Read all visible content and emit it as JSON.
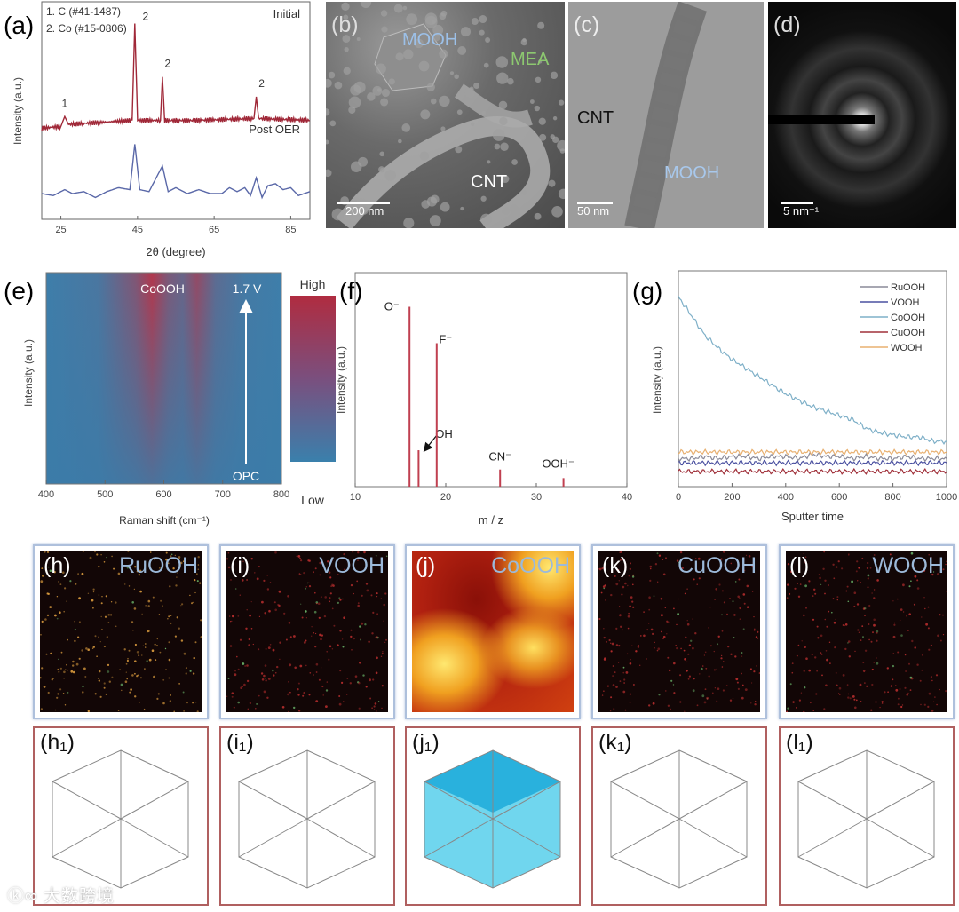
{
  "panels": {
    "a": "(a)",
    "b": "(b)",
    "c": "(c)",
    "d": "(d)",
    "e": "(e)",
    "f": "(f)",
    "g": "(g)"
  },
  "micrographs": {
    "b": {
      "mooh": "MOOH",
      "mea": "MEA",
      "cnt": "CNT",
      "scale": "200 nm"
    },
    "c": {
      "cnt": "CNT",
      "mooh": "MOOH",
      "scale": "50 nm"
    },
    "d": {
      "scale": "5 nm⁻¹"
    }
  },
  "colorbar": {
    "high": "High",
    "low": "Low"
  },
  "maps": [
    {
      "label": "(h)",
      "name": "RuOOH",
      "label3d": "(h₁)"
    },
    {
      "label": "(i)",
      "name": "VOOH",
      "label3d": "(i₁)"
    },
    {
      "label": "(j)",
      "name": "CoOOH",
      "label3d": "(j₁)"
    },
    {
      "label": "(k)",
      "name": "CuOOH",
      "label3d": "(k₁)"
    },
    {
      "label": "(l)",
      "name": "WOOH",
      "label3d": "(l₁)"
    }
  ],
  "watermark": "大数跨境",
  "chart_data": [
    {
      "id": "a",
      "type": "line",
      "xlabel": "2θ (degree)",
      "ylabel": "Intensity (a.u.)",
      "xlim": [
        20,
        90
      ],
      "ylim": [
        0,
        1.1
      ],
      "xticks": [
        25,
        45,
        65,
        85
      ],
      "legend_text": [
        "1. C (#41-1487)",
        "2. Co (#15-0806)"
      ],
      "series": [
        {
          "name": "Initial",
          "color": "#a02838",
          "points": [
            [
              20,
              0.46
            ],
            [
              25,
              0.47
            ],
            [
              26,
              0.52
            ],
            [
              27,
              0.48
            ],
            [
              35,
              0.49
            ],
            [
              43.6,
              0.5
            ],
            [
              44.3,
              0.99
            ],
            [
              45,
              0.5
            ],
            [
              51,
              0.5
            ],
            [
              51.5,
              0.72
            ],
            [
              52.1,
              0.5
            ],
            [
              60,
              0.5
            ],
            [
              75.4,
              0.51
            ],
            [
              76,
              0.62
            ],
            [
              76.6,
              0.51
            ],
            [
              90,
              0.5
            ]
          ]
        },
        {
          "name": "Post OER",
          "color": "#5a68a8",
          "points": [
            [
              20,
              0.13
            ],
            [
              23,
              0.12
            ],
            [
              26,
              0.15
            ],
            [
              28,
              0.13
            ],
            [
              31,
              0.14
            ],
            [
              34,
              0.11
            ],
            [
              37,
              0.14
            ],
            [
              40,
              0.16
            ],
            [
              43,
              0.15
            ],
            [
              44.3,
              0.38
            ],
            [
              45.6,
              0.15
            ],
            [
              48,
              0.14
            ],
            [
              51.5,
              0.27
            ],
            [
              53,
              0.14
            ],
            [
              55,
              0.16
            ],
            [
              58,
              0.13
            ],
            [
              61,
              0.15
            ],
            [
              64,
              0.13
            ],
            [
              67,
              0.13
            ],
            [
              69,
              0.16
            ],
            [
              71,
              0.14
            ],
            [
              73,
              0.16
            ],
            [
              74.5,
              0.12
            ],
            [
              76,
              0.21
            ],
            [
              77.5,
              0.11
            ],
            [
              79,
              0.17
            ],
            [
              81,
              0.18
            ],
            [
              83,
              0.15
            ],
            [
              85,
              0.16
            ],
            [
              87,
              0.12
            ],
            [
              90,
              0.14
            ]
          ]
        }
      ],
      "annotations": [
        {
          "text": "1",
          "x": 26
        },
        {
          "text": "2",
          "x": 44.3
        },
        {
          "text": "2",
          "x": 51.5
        },
        {
          "text": "2",
          "x": 76
        }
      ]
    },
    {
      "id": "e",
      "type": "heatmap",
      "xlabel": "Raman shift (cm⁻¹)",
      "ylabel": "Intensity (a.u.)",
      "xlim": [
        400,
        800
      ],
      "xticks": [
        400,
        500,
        600,
        700,
        800
      ],
      "bands": [
        575,
        655
      ],
      "annotations": {
        "peak": "CoOOH",
        "top": "1.7 V",
        "bottom": "OPC"
      }
    },
    {
      "id": "f",
      "type": "bar",
      "xlabel": "m / z",
      "ylabel": "Intensity (a.u.)",
      "xlim": [
        10,
        40
      ],
      "ylim": [
        0,
        1
      ],
      "xticks": [
        10,
        20,
        30,
        40
      ],
      "color": "#c04050",
      "peaks": [
        {
          "label": "O⁻",
          "x": 16,
          "y": 0.84
        },
        {
          "label": "OH⁻",
          "x": 17,
          "y": 0.17
        },
        {
          "label": "F⁻",
          "x": 19,
          "y": 0.67
        },
        {
          "label": "CN⁻",
          "x": 26,
          "y": 0.08
        },
        {
          "label": "OOH⁻",
          "x": 33,
          "y": 0.04
        }
      ]
    },
    {
      "id": "g",
      "type": "line",
      "xlabel": "Sputter time",
      "ylabel": "Intensity (a.u.)",
      "xlim": [
        0,
        1000
      ],
      "ylim": [
        0,
        1
      ],
      "xticks": [
        0,
        200,
        400,
        600,
        800,
        1000
      ],
      "legend": "top-right",
      "x": [
        0,
        50,
        100,
        150,
        200,
        250,
        300,
        350,
        400,
        450,
        500,
        550,
        600,
        650,
        700,
        750,
        800,
        850,
        900,
        950,
        1000
      ],
      "series": [
        {
          "name": "RuOOH",
          "color": "#8a8a98",
          "values": [
            0.13,
            0.13,
            0.14,
            0.13,
            0.14,
            0.14,
            0.13,
            0.14,
            0.14,
            0.13,
            0.15,
            0.14,
            0.14,
            0.13,
            0.14,
            0.13,
            0.13,
            0.14,
            0.13,
            0.13,
            0.13
          ]
        },
        {
          "name": "VOOH",
          "color": "#4a50a0",
          "values": [
            0.11,
            0.11,
            0.11,
            0.11,
            0.11,
            0.11,
            0.11,
            0.11,
            0.11,
            0.11,
            0.11,
            0.11,
            0.11,
            0.11,
            0.11,
            0.11,
            0.11,
            0.11,
            0.11,
            0.11,
            0.11
          ]
        },
        {
          "name": "CoOOH",
          "color": "#7fb0c8",
          "values": [
            0.88,
            0.79,
            0.7,
            0.64,
            0.59,
            0.55,
            0.51,
            0.47,
            0.43,
            0.4,
            0.37,
            0.35,
            0.33,
            0.31,
            0.27,
            0.25,
            0.24,
            0.23,
            0.23,
            0.21,
            0.21
          ]
        },
        {
          "name": "CuOOH",
          "color": "#a0303a",
          "values": [
            0.07,
            0.07,
            0.07,
            0.07,
            0.07,
            0.07,
            0.07,
            0.07,
            0.07,
            0.07,
            0.07,
            0.07,
            0.07,
            0.07,
            0.07,
            0.07,
            0.07,
            0.07,
            0.07,
            0.07,
            0.07
          ]
        },
        {
          "name": "WOOH",
          "color": "#e8b070",
          "values": [
            0.16,
            0.16,
            0.16,
            0.16,
            0.16,
            0.16,
            0.16,
            0.16,
            0.16,
            0.16,
            0.16,
            0.16,
            0.16,
            0.16,
            0.16,
            0.16,
            0.16,
            0.16,
            0.16,
            0.16,
            0.16
          ]
        }
      ]
    }
  ]
}
